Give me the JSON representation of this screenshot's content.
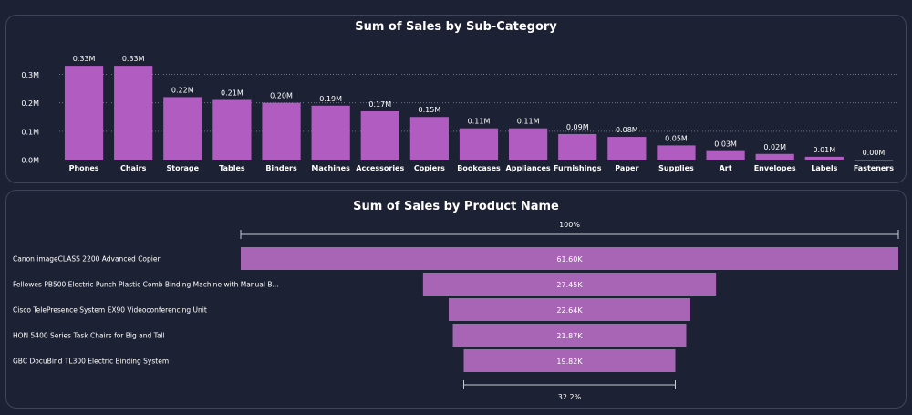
{
  "chart_data": [
    {
      "type": "bar",
      "title": "Sum of Sales by Sub-Category",
      "categories": [
        "Phones",
        "Chairs",
        "Storage",
        "Tables",
        "Binders",
        "Machines",
        "Accessories",
        "Copiers",
        "Bookcases",
        "Appliances",
        "Furnishings",
        "Paper",
        "Supplies",
        "Art",
        "Envelopes",
        "Labels",
        "Fasteners"
      ],
      "values": [
        0.33,
        0.33,
        0.22,
        0.21,
        0.2,
        0.19,
        0.17,
        0.15,
        0.11,
        0.11,
        0.09,
        0.08,
        0.05,
        0.03,
        0.02,
        0.01,
        0.0
      ],
      "data_labels": [
        "0.33M",
        "0.33M",
        "0.22M",
        "0.21M",
        "0.20M",
        "0.19M",
        "0.17M",
        "0.15M",
        "0.11M",
        "0.11M",
        "0.09M",
        "0.08M",
        "0.05M",
        "0.03M",
        "0.02M",
        "0.01M",
        "0.00M"
      ],
      "yticks": [
        0,
        0.1,
        0.2,
        0.3
      ],
      "ytick_labels": [
        "0.0M",
        "0.1M",
        "0.2M",
        "0.3M"
      ],
      "ylim": [
        0,
        0.34
      ],
      "grid": true,
      "bar_color": "#b05cc0"
    },
    {
      "type": "funnel",
      "title": "Sum of Sales by Product Name",
      "categories": [
        "Canon imageCLASS 2200 Advanced Copier",
        "Fellowes PB500 Electric Punch Plastic Comb Binding Machine with Manual B...",
        "Cisco TelePresence System EX90 Videoconferencing Unit",
        "HON 5400 Series Task Chairs for Big and Tall",
        "GBC DocuBind TL300 Electric Binding System"
      ],
      "values": [
        61.6,
        27.45,
        22.64,
        21.87,
        19.82
      ],
      "data_labels": [
        "61.60K",
        "27.45K",
        "22.64K",
        "21.87K",
        "19.82K"
      ],
      "top_percent_label": "100%",
      "bottom_percent_label": "32.2%",
      "bar_color": "#a865b5"
    }
  ]
}
